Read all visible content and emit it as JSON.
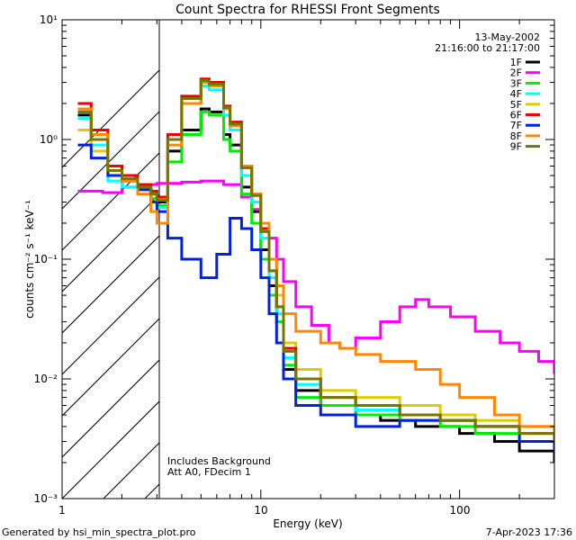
{
  "chart_data": {
    "type": "line",
    "title": "Count Spectra for RHESSI Front Segments",
    "xlabel": "Energy (keV)",
    "ylabel": "counts cm⁻² s⁻¹ keV⁻¹",
    "xscale": "log",
    "yscale": "log",
    "xlim": [
      1,
      300
    ],
    "ylim": [
      0.001,
      10
    ],
    "x_tick_labels": [
      "1",
      "10",
      "100"
    ],
    "y_tick_labels": [
      "10⁻³",
      "10⁻²",
      "10⁻¹",
      "10⁰",
      "10¹"
    ],
    "date": "13-May-2002",
    "time_range": "21:16:00 to 21:17:00",
    "note_lines": [
      "Includes Background",
      "Att A0, FDecim 1"
    ],
    "footer_left": "Generated by hsi_min_spectra_plot.pro",
    "footer_right": "7-Apr-2023 17:36",
    "shaded_region_keV": [
      1,
      3
    ],
    "series": [
      {
        "name": "1F",
        "color": "#000000",
        "values": [
          [
            1.2,
            1.6
          ],
          [
            1.4,
            1.0
          ],
          [
            1.7,
            0.55
          ],
          [
            2.0,
            0.5
          ],
          [
            2.4,
            0.4
          ],
          [
            2.8,
            0.35
          ],
          [
            3.0,
            0.3
          ],
          [
            3.4,
            0.8
          ],
          [
            4.0,
            1.2
          ],
          [
            5.0,
            1.8
          ],
          [
            5.5,
            1.7
          ],
          [
            6.5,
            1.1
          ],
          [
            7.0,
            0.9
          ],
          [
            8.0,
            0.4
          ],
          [
            9.0,
            0.25
          ],
          [
            10.0,
            0.12
          ],
          [
            11.0,
            0.06
          ],
          [
            12.0,
            0.03
          ],
          [
            13.0,
            0.012
          ],
          [
            15.0,
            0.008
          ],
          [
            20.0,
            0.006
          ],
          [
            25.0,
            0.006
          ],
          [
            30.0,
            0.005
          ],
          [
            40.0,
            0.0045
          ],
          [
            60.0,
            0.004
          ],
          [
            100.0,
            0.0035
          ],
          [
            150.0,
            0.003
          ],
          [
            200.0,
            0.0025
          ],
          [
            300.0,
            0.002
          ]
        ]
      },
      {
        "name": "2F",
        "color": "#ff00ff",
        "values": [
          [
            1.2,
            0.37
          ],
          [
            1.6,
            0.36
          ],
          [
            2.0,
            0.4
          ],
          [
            2.5,
            0.42
          ],
          [
            3.0,
            0.43
          ],
          [
            4.0,
            0.44
          ],
          [
            5.0,
            0.45
          ],
          [
            6.5,
            0.42
          ],
          [
            8.0,
            0.33
          ],
          [
            9.0,
            0.26
          ],
          [
            10.0,
            0.2
          ],
          [
            11.0,
            0.15
          ],
          [
            12.0,
            0.1
          ],
          [
            13.0,
            0.065
          ],
          [
            15.0,
            0.04
          ],
          [
            18.0,
            0.028
          ],
          [
            22.0,
            0.02
          ],
          [
            25.0,
            0.018
          ],
          [
            30.0,
            0.022
          ],
          [
            40.0,
            0.03
          ],
          [
            50.0,
            0.04
          ],
          [
            60.0,
            0.046
          ],
          [
            70.0,
            0.04
          ],
          [
            90.0,
            0.033
          ],
          [
            120.0,
            0.025
          ],
          [
            160.0,
            0.02
          ],
          [
            200.0,
            0.017
          ],
          [
            250.0,
            0.014
          ],
          [
            300.0,
            0.011
          ]
        ]
      },
      {
        "name": "3F",
        "color": "#00ee00",
        "values": [
          [
            1.2,
            1.7
          ],
          [
            1.4,
            1.1
          ],
          [
            1.7,
            0.6
          ],
          [
            2.0,
            0.5
          ],
          [
            2.4,
            0.4
          ],
          [
            2.8,
            0.32
          ],
          [
            3.0,
            0.28
          ],
          [
            3.4,
            0.65
          ],
          [
            4.0,
            1.1
          ],
          [
            5.0,
            1.7
          ],
          [
            5.5,
            1.6
          ],
          [
            6.5,
            1.0
          ],
          [
            7.0,
            0.8
          ],
          [
            8.0,
            0.35
          ],
          [
            9.0,
            0.2
          ],
          [
            10.0,
            0.1
          ],
          [
            11.0,
            0.05
          ],
          [
            12.0,
            0.03
          ],
          [
            13.0,
            0.013
          ],
          [
            15.0,
            0.007
          ],
          [
            20.0,
            0.006
          ],
          [
            30.0,
            0.005
          ],
          [
            50.0,
            0.0045
          ],
          [
            80.0,
            0.004
          ],
          [
            120.0,
            0.0035
          ],
          [
            200.0,
            0.003
          ],
          [
            300.0,
            0.0025
          ]
        ]
      },
      {
        "name": "4F",
        "color": "#00ffff",
        "values": [
          [
            1.2,
            1.5
          ],
          [
            1.4,
            0.9
          ],
          [
            1.7,
            0.45
          ],
          [
            2.0,
            0.4
          ],
          [
            2.4,
            0.35
          ],
          [
            2.8,
            0.3
          ],
          [
            3.0,
            0.27
          ],
          [
            3.4,
            1.0
          ],
          [
            4.0,
            2.0
          ],
          [
            5.0,
            2.8
          ],
          [
            5.5,
            2.6
          ],
          [
            6.5,
            1.6
          ],
          [
            7.0,
            1.2
          ],
          [
            8.0,
            0.5
          ],
          [
            9.0,
            0.3
          ],
          [
            10.0,
            0.15
          ],
          [
            11.0,
            0.07
          ],
          [
            12.0,
            0.035
          ],
          [
            13.0,
            0.015
          ],
          [
            15.0,
            0.009
          ],
          [
            20.0,
            0.007
          ],
          [
            30.0,
            0.0055
          ],
          [
            50.0,
            0.005
          ],
          [
            80.0,
            0.0045
          ],
          [
            120.0,
            0.004
          ],
          [
            200.0,
            0.003
          ],
          [
            300.0,
            0.0025
          ]
        ]
      },
      {
        "name": "5F",
        "color": "#ddcc00",
        "values": [
          [
            1.2,
            1.2
          ],
          [
            1.4,
            0.8
          ],
          [
            1.7,
            0.5
          ],
          [
            2.0,
            0.45
          ],
          [
            2.4,
            0.4
          ],
          [
            2.8,
            0.35
          ],
          [
            3.0,
            0.32
          ],
          [
            3.4,
            1.0
          ],
          [
            4.0,
            2.2
          ],
          [
            5.0,
            3.0
          ],
          [
            5.5,
            2.8
          ],
          [
            6.5,
            1.8
          ],
          [
            7.0,
            1.3
          ],
          [
            8.0,
            0.6
          ],
          [
            9.0,
            0.35
          ],
          [
            10.0,
            0.2
          ],
          [
            11.0,
            0.1
          ],
          [
            12.0,
            0.05
          ],
          [
            13.0,
            0.02
          ],
          [
            15.0,
            0.012
          ],
          [
            20.0,
            0.008
          ],
          [
            30.0,
            0.007
          ],
          [
            50.0,
            0.006
          ],
          [
            80.0,
            0.005
          ],
          [
            120.0,
            0.0045
          ],
          [
            200.0,
            0.004
          ],
          [
            300.0,
            0.0035
          ]
        ]
      },
      {
        "name": "6F",
        "color": "#ee0000",
        "values": [
          [
            1.2,
            2.0
          ],
          [
            1.4,
            1.2
          ],
          [
            1.7,
            0.6
          ],
          [
            2.0,
            0.5
          ],
          [
            2.4,
            0.42
          ],
          [
            2.8,
            0.37
          ],
          [
            3.0,
            0.33
          ],
          [
            3.4,
            1.1
          ],
          [
            4.0,
            2.3
          ],
          [
            5.0,
            3.2
          ],
          [
            5.5,
            3.0
          ],
          [
            6.5,
            1.9
          ],
          [
            7.0,
            1.4
          ],
          [
            8.0,
            0.6
          ],
          [
            9.0,
            0.35
          ],
          [
            10.0,
            0.18
          ],
          [
            11.0,
            0.08
          ],
          [
            12.0,
            0.04
          ],
          [
            13.0,
            0.018
          ],
          [
            15.0,
            0.01
          ],
          [
            20.0,
            0.007
          ],
          [
            30.0,
            0.006
          ],
          [
            50.0,
            0.005
          ],
          [
            80.0,
            0.0045
          ],
          [
            120.0,
            0.004
          ],
          [
            200.0,
            0.0035
          ],
          [
            300.0,
            0.003
          ]
        ]
      },
      {
        "name": "7F",
        "color": "#0022dd",
        "values": [
          [
            1.2,
            0.9
          ],
          [
            1.4,
            0.7
          ],
          [
            1.7,
            0.5
          ],
          [
            2.0,
            0.45
          ],
          [
            2.4,
            0.38
          ],
          [
            2.8,
            0.3
          ],
          [
            3.0,
            0.25
          ],
          [
            3.4,
            0.15
          ],
          [
            4.0,
            0.1
          ],
          [
            5.0,
            0.07
          ],
          [
            6.0,
            0.11
          ],
          [
            7.0,
            0.22
          ],
          [
            8.0,
            0.18
          ],
          [
            9.0,
            0.12
          ],
          [
            10.0,
            0.07
          ],
          [
            11.0,
            0.035
          ],
          [
            12.0,
            0.02
          ],
          [
            13.0,
            0.01
          ],
          [
            15.0,
            0.006
          ],
          [
            20.0,
            0.005
          ],
          [
            30.0,
            0.004
          ],
          [
            50.0,
            0.0045
          ],
          [
            80.0,
            0.0045
          ],
          [
            120.0,
            0.004
          ],
          [
            200.0,
            0.003
          ],
          [
            300.0,
            0.0025
          ]
        ]
      },
      {
        "name": "8F",
        "color": "#ff8800",
        "values": [
          [
            1.2,
            1.8
          ],
          [
            1.4,
            1.1
          ],
          [
            1.7,
            0.55
          ],
          [
            2.0,
            0.45
          ],
          [
            2.4,
            0.35
          ],
          [
            2.8,
            0.25
          ],
          [
            3.0,
            0.2
          ],
          [
            3.4,
            0.9
          ],
          [
            4.0,
            2.0
          ],
          [
            5.0,
            3.0
          ],
          [
            5.5,
            2.8
          ],
          [
            6.5,
            1.8
          ],
          [
            7.0,
            1.3
          ],
          [
            8.0,
            0.6
          ],
          [
            9.0,
            0.35
          ],
          [
            10.0,
            0.2
          ],
          [
            11.0,
            0.1
          ],
          [
            12.0,
            0.06
          ],
          [
            13.0,
            0.035
          ],
          [
            15.0,
            0.025
          ],
          [
            20.0,
            0.02
          ],
          [
            25.0,
            0.018
          ],
          [
            30.0,
            0.016
          ],
          [
            40.0,
            0.014
          ],
          [
            60.0,
            0.012
          ],
          [
            80.0,
            0.009
          ],
          [
            100.0,
            0.007
          ],
          [
            150.0,
            0.005
          ],
          [
            200.0,
            0.004
          ],
          [
            300.0,
            0.003
          ]
        ]
      },
      {
        "name": "9F",
        "color": "#777700",
        "values": [
          [
            1.2,
            1.7
          ],
          [
            1.4,
            1.0
          ],
          [
            1.7,
            0.55
          ],
          [
            2.0,
            0.47
          ],
          [
            2.4,
            0.4
          ],
          [
            2.8,
            0.35
          ],
          [
            3.0,
            0.31
          ],
          [
            3.4,
            1.0
          ],
          [
            4.0,
            2.2
          ],
          [
            5.0,
            3.1
          ],
          [
            5.5,
            2.9
          ],
          [
            6.5,
            1.85
          ],
          [
            7.0,
            1.35
          ],
          [
            8.0,
            0.58
          ],
          [
            9.0,
            0.34
          ],
          [
            10.0,
            0.17
          ],
          [
            11.0,
            0.08
          ],
          [
            12.0,
            0.04
          ],
          [
            13.0,
            0.017
          ],
          [
            15.0,
            0.01
          ],
          [
            20.0,
            0.007
          ],
          [
            30.0,
            0.006
          ],
          [
            50.0,
            0.005
          ],
          [
            80.0,
            0.0045
          ],
          [
            120.0,
            0.004
          ],
          [
            200.0,
            0.0035
          ],
          [
            300.0,
            0.003
          ]
        ]
      }
    ]
  }
}
